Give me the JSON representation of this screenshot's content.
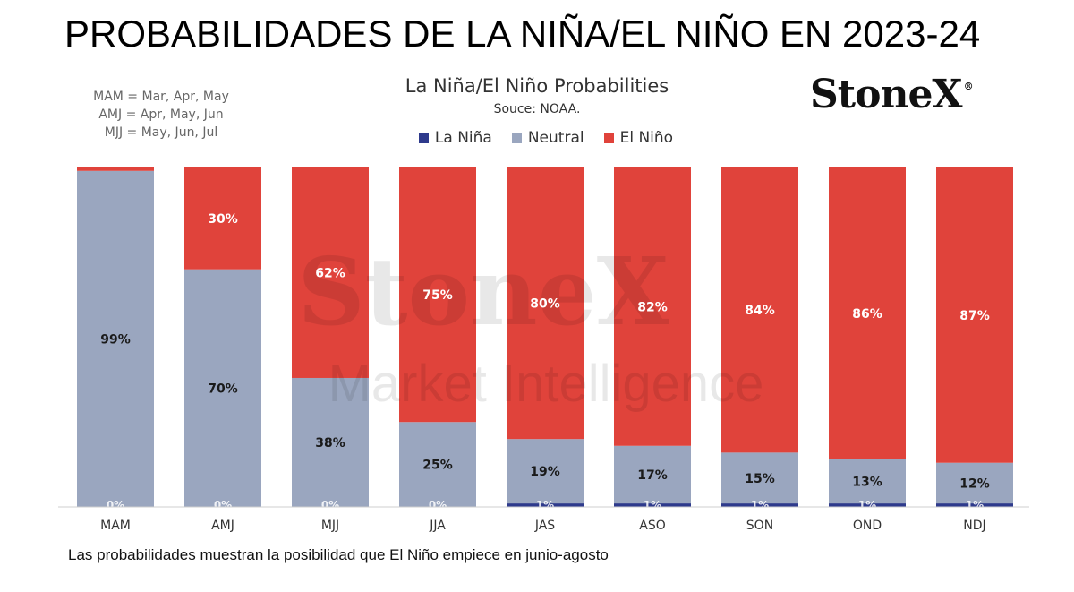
{
  "headline": "PROBABILIDADES DE LA NIÑA/EL NIÑO EN 2023-24",
  "abbreviations": [
    "MAM = Mar, Apr, May",
    "AMJ = Apr, May, Jun",
    "MJJ = May, Jun, Jul"
  ],
  "logo": {
    "text": "StoneX",
    "mark": "®"
  },
  "watermark": {
    "line1": "StoneX",
    "line2": "Market Intelligence"
  },
  "footnote": "Las probabilidades muestran la posibilidad que El Niño empiece en junio-agosto",
  "colors": {
    "la_nina": "#2e3a8c",
    "neutral": "#9aa6bf",
    "el_nino": "#e0433b"
  },
  "chart_data": {
    "type": "bar",
    "stacked": true,
    "title": "La Niña/El Niño Probabilities",
    "subtitle": "Souce: NOAA.",
    "categories": [
      "MAM",
      "AMJ",
      "MJJ",
      "JJA",
      "JAS",
      "ASO",
      "SON",
      "OND",
      "NDJ"
    ],
    "series": [
      {
        "name": "La Niña",
        "values": [
          0,
          0,
          0,
          0,
          1,
          1,
          1,
          1,
          1
        ]
      },
      {
        "name": "Neutral",
        "values": [
          99,
          70,
          38,
          25,
          19,
          17,
          15,
          13,
          12
        ]
      },
      {
        "name": "El Niño",
        "values": [
          1,
          30,
          62,
          75,
          80,
          82,
          84,
          86,
          87
        ]
      }
    ],
    "labels": {
      "La Niña": [
        "0%",
        "0%",
        "0%",
        "0%",
        "1%",
        "1%",
        "1%",
        "1%",
        "1%"
      ],
      "Neutral": [
        "99%",
        "70%",
        "38%",
        "25%",
        "19%",
        "17%",
        "15%",
        "13%",
        "12%"
      ],
      "El Niño": [
        "",
        "30%",
        "62%",
        "75%",
        "80%",
        "82%",
        "84%",
        "86%",
        "87%"
      ]
    },
    "ylim": [
      0,
      100
    ],
    "xlabel": "",
    "ylabel": "",
    "grid": false,
    "legend": "top-center"
  }
}
